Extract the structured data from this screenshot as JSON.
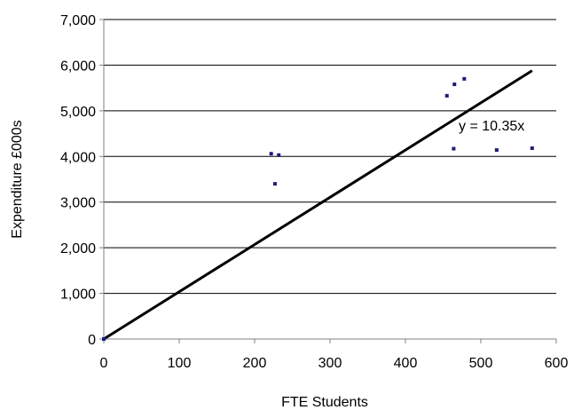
{
  "chart_data": {
    "type": "scatter",
    "title": "",
    "xlabel": "FTE Students",
    "ylabel": "Expenditure £000s",
    "xlim": [
      0,
      600
    ],
    "ylim": [
      0,
      7000
    ],
    "x_ticks": [
      0,
      100,
      200,
      300,
      400,
      500,
      600
    ],
    "y_ticks": [
      0,
      1000,
      2000,
      3000,
      4000,
      5000,
      6000,
      7000
    ],
    "x_tick_labels": [
      "0",
      "100",
      "200",
      "300",
      "400",
      "500",
      "600"
    ],
    "y_tick_labels": [
      "0",
      "1,000",
      "2,000",
      "3,000",
      "4,000",
      "5,000",
      "6,000",
      "7,000"
    ],
    "grid": "horizontal",
    "series": [
      {
        "x": [
          0,
          222,
          227,
          232,
          455,
          464,
          465,
          478,
          521,
          568
        ],
        "y": [
          0,
          4060,
          3400,
          4030,
          5330,
          4170,
          5580,
          5700,
          4140,
          4180
        ]
      }
    ],
    "trendline": {
      "slope": 10.35,
      "x_range": [
        0,
        568
      ],
      "label": "y = 10.35x"
    },
    "colors": {
      "marker": "#1c1c7a",
      "line": "#000000",
      "grid": "#000000",
      "axis": "#808080"
    }
  }
}
